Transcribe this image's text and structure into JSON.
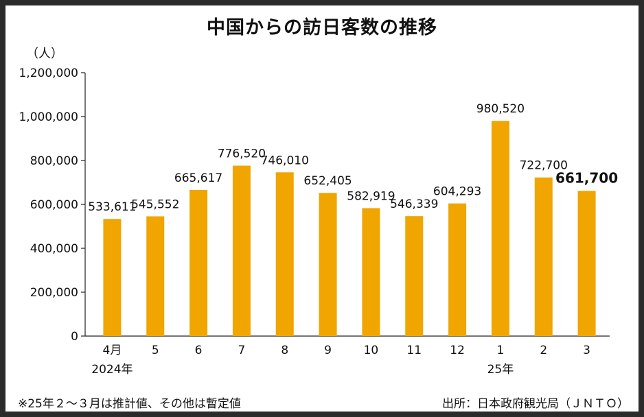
{
  "chart_data": {
    "type": "bar",
    "title": "中国からの訪日客数の推移",
    "unit_label": "（人）",
    "categories": [
      "4月",
      "5",
      "6",
      "7",
      "8",
      "9",
      "10",
      "11",
      "12",
      "1",
      "2",
      "3"
    ],
    "year_labels": [
      {
        "category_index": 0,
        "text": "2024年"
      },
      {
        "category_index": 9,
        "text": "25年"
      }
    ],
    "values": [
      533611,
      545552,
      665617,
      776520,
      746010,
      652405,
      582919,
      546339,
      604293,
      980520,
      722700,
      661700
    ],
    "value_labels": [
      "533,611",
      "545,552",
      "665,617",
      "776,520",
      "746,010",
      "652,405",
      "582,919",
      "546,339",
      "604,293",
      "980,520",
      "722,700",
      "661,700"
    ],
    "highlight_index": 11,
    "ylim": [
      0,
      1200000
    ],
    "y_ticks": [
      0,
      200000,
      400000,
      600000,
      800000,
      1000000,
      1200000
    ],
    "y_tick_labels": [
      "0",
      "200,000",
      "400,000",
      "600,000",
      "800,000",
      "1,000,000",
      "1,200,000"
    ],
    "bar_color": "#f0a500",
    "grid": false,
    "footnote": "※25年２～３月は推計値、その他は暫定値",
    "source": "出所：日本政府観光局（ＪＮＴＯ）"
  }
}
